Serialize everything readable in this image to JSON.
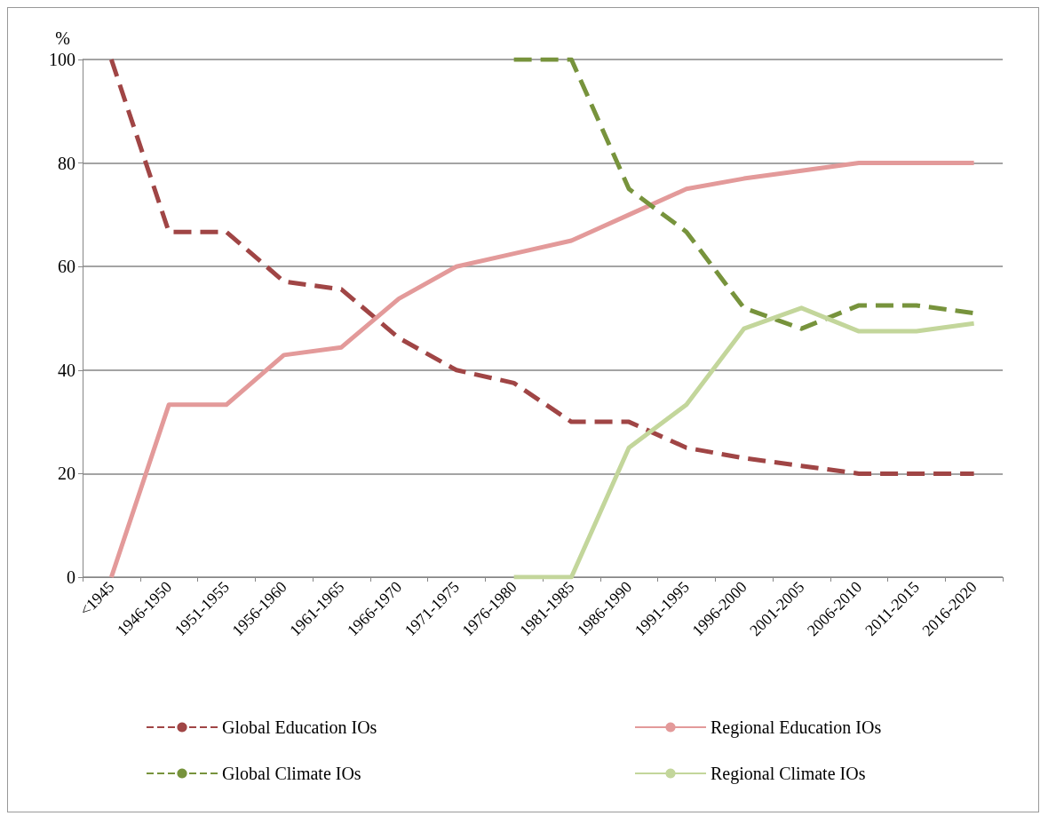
{
  "chart_data": {
    "type": "line",
    "ylabel": "%",
    "categories": [
      "<1945",
      "1946-1950",
      "1951-1955",
      "1956-1960",
      "1961-1965",
      "1966-1970",
      "1971-1975",
      "1976-1980",
      "1981-1985",
      "1986-1990",
      "1991-1995",
      "1996-2000",
      "2001-2005",
      "2006-2010",
      "2011-2015",
      "2016-2020"
    ],
    "series": [
      {
        "name": "Global Education IOs",
        "color": "#a04545",
        "line_style": "dashed",
        "values": [
          100,
          66.7,
          66.7,
          57.1,
          55.6,
          46.2,
          40,
          37.5,
          30,
          30,
          25,
          23,
          21.5,
          20,
          20,
          20
        ]
      },
      {
        "name": "Regional Education IOs",
        "color": "#e39a9a",
        "line_style": "solid",
        "values": [
          0,
          33.3,
          33.3,
          42.9,
          44.4,
          53.8,
          60,
          62.5,
          65,
          70,
          75,
          77,
          78.5,
          80,
          80,
          80
        ]
      },
      {
        "name": "Global Climate IOs",
        "color": "#77933c",
        "line_style": "dashed",
        "values": [
          null,
          null,
          null,
          null,
          null,
          null,
          null,
          100,
          100,
          75,
          66.7,
          52,
          48,
          52.5,
          52.5,
          51
        ]
      },
      {
        "name": "Regional Climate IOs",
        "color": "#c3d69b",
        "line_style": "solid",
        "values": [
          null,
          null,
          null,
          null,
          null,
          null,
          null,
          0,
          0,
          25,
          33.3,
          48,
          52,
          47.5,
          47.5,
          49
        ]
      }
    ],
    "ylim": [
      0,
      100
    ],
    "yticks": [
      0,
      20,
      40,
      60,
      80,
      100
    ],
    "grid": "y",
    "legend": "bottom",
    "marker": "none"
  }
}
